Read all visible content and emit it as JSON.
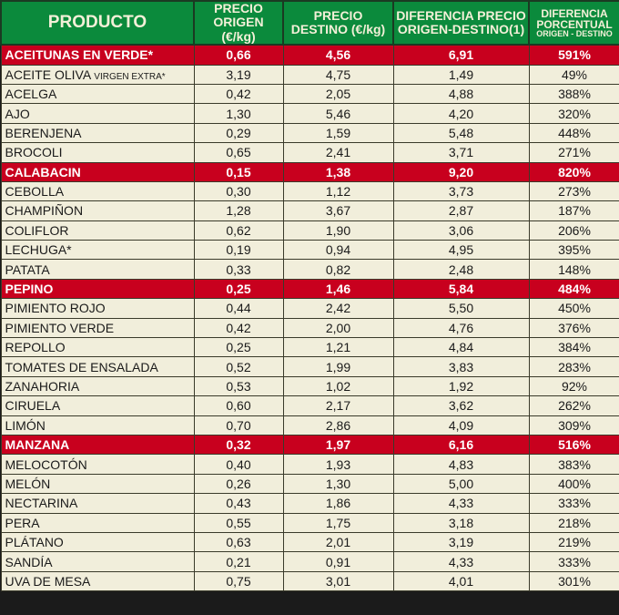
{
  "header": {
    "producto": "PRODUCTO",
    "origen": [
      "PRECIO",
      "ORIGEN (€/kg)"
    ],
    "destino": [
      "PRECIO",
      "DESTINO (€/kg)"
    ],
    "diferencia": [
      "DIFERENCIA PRECIO",
      "ORIGEN-DESTINO(1)"
    ],
    "porcentual": [
      "DIFERENCIA",
      "PORCENTUAL",
      "ORIGEN - DESTINO"
    ]
  },
  "colors": {
    "header": "#0b8a3c",
    "highlight": "#c8001e",
    "row": "#f1eedb"
  },
  "rows": [
    {
      "name": "ACEITUNAS EN VERDE*",
      "suffix": "",
      "origen": "0,66",
      "destino": "4,56",
      "dif": "6,91",
      "pct": "591%",
      "highlight": true
    },
    {
      "name": "ACEITE OLIVA ",
      "suffix": "VIRGEN EXTRA*",
      "origen": "3,19",
      "destino": "4,75",
      "dif": "1,49",
      "pct": "49%",
      "highlight": false
    },
    {
      "name": "ACELGA",
      "suffix": "",
      "origen": "0,42",
      "destino": "2,05",
      "dif": "4,88",
      "pct": "388%",
      "highlight": false
    },
    {
      "name": "AJO",
      "suffix": "",
      "origen": "1,30",
      "destino": "5,46",
      "dif": "4,20",
      "pct": "320%",
      "highlight": false
    },
    {
      "name": "BERENJENA",
      "suffix": "",
      "origen": "0,29",
      "destino": "1,59",
      "dif": "5,48",
      "pct": "448%",
      "highlight": false
    },
    {
      "name": "BROCOLI",
      "suffix": "",
      "origen": "0,65",
      "destino": "2,41",
      "dif": "3,71",
      "pct": "271%",
      "highlight": false
    },
    {
      "name": "CALABACIN",
      "suffix": "",
      "origen": "0,15",
      "destino": "1,38",
      "dif": "9,20",
      "pct": "820%",
      "highlight": true
    },
    {
      "name": "CEBOLLA",
      "suffix": "",
      "origen": "0,30",
      "destino": "1,12",
      "dif": "3,73",
      "pct": "273%",
      "highlight": false
    },
    {
      "name": "CHAMPIÑON",
      "suffix": "",
      "origen": "1,28",
      "destino": "3,67",
      "dif": "2,87",
      "pct": "187%",
      "highlight": false
    },
    {
      "name": "COLIFLOR",
      "suffix": "",
      "origen": "0,62",
      "destino": "1,90",
      "dif": "3,06",
      "pct": "206%",
      "highlight": false
    },
    {
      "name": "LECHUGA*",
      "suffix": "",
      "origen": "0,19",
      "destino": "0,94",
      "dif": "4,95",
      "pct": "395%",
      "highlight": false
    },
    {
      "name": "PATATA",
      "suffix": "",
      "origen": "0,33",
      "destino": "0,82",
      "dif": "2,48",
      "pct": "148%",
      "highlight": false
    },
    {
      "name": "PEPINO",
      "suffix": "",
      "origen": "0,25",
      "destino": "1,46",
      "dif": "5,84",
      "pct": "484%",
      "highlight": true
    },
    {
      "name": "PIMIENTO ROJO",
      "suffix": "",
      "origen": "0,44",
      "destino": "2,42",
      "dif": "5,50",
      "pct": "450%",
      "highlight": false
    },
    {
      "name": "PIMIENTO VERDE",
      "suffix": "",
      "origen": "0,42",
      "destino": "2,00",
      "dif": "4,76",
      "pct": "376%",
      "highlight": false
    },
    {
      "name": "REPOLLO",
      "suffix": "",
      "origen": "0,25",
      "destino": "1,21",
      "dif": "4,84",
      "pct": "384%",
      "highlight": false
    },
    {
      "name": "TOMATES DE ENSALADA",
      "suffix": "",
      "origen": "0,52",
      "destino": "1,99",
      "dif": "3,83",
      "pct": "283%",
      "highlight": false
    },
    {
      "name": "ZANAHORIA",
      "suffix": "",
      "origen": "0,53",
      "destino": "1,02",
      "dif": "1,92",
      "pct": "92%",
      "highlight": false
    },
    {
      "name": "CIRUELA",
      "suffix": "",
      "origen": "0,60",
      "destino": "2,17",
      "dif": "3,62",
      "pct": "262%",
      "highlight": false
    },
    {
      "name": "LIMÓN",
      "suffix": "",
      "origen": "0,70",
      "destino": "2,86",
      "dif": "4,09",
      "pct": "309%",
      "highlight": false
    },
    {
      "name": "MANZANA",
      "suffix": "",
      "origen": "0,32",
      "destino": "1,97",
      "dif": "6,16",
      "pct": "516%",
      "highlight": true
    },
    {
      "name": "MELOCOTÓN",
      "suffix": "",
      "origen": "0,40",
      "destino": "1,93",
      "dif": "4,83",
      "pct": "383%",
      "highlight": false
    },
    {
      "name": "MELÓN",
      "suffix": "",
      "origen": "0,26",
      "destino": "1,30",
      "dif": "5,00",
      "pct": "400%",
      "highlight": false
    },
    {
      "name": "NECTARINA",
      "suffix": "",
      "origen": "0,43",
      "destino": "1,86",
      "dif": "4,33",
      "pct": "333%",
      "highlight": false
    },
    {
      "name": "PERA",
      "suffix": "",
      "origen": "0,55",
      "destino": "1,75",
      "dif": "3,18",
      "pct": "218%",
      "highlight": false
    },
    {
      "name": "PLÁTANO",
      "suffix": "",
      "origen": "0,63",
      "destino": "2,01",
      "dif": "3,19",
      "pct": "219%",
      "highlight": false
    },
    {
      "name": "SANDÍA",
      "suffix": "",
      "origen": "0,21",
      "destino": "0,91",
      "dif": "4,33",
      "pct": "333%",
      "highlight": false
    },
    {
      "name": "UVA DE MESA",
      "suffix": "",
      "origen": "0,75",
      "destino": "3,01",
      "dif": "4,01",
      "pct": "301%",
      "highlight": false
    }
  ]
}
